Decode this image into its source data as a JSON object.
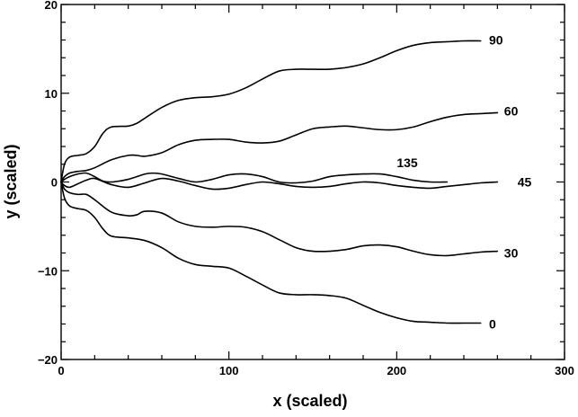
{
  "chart_data": {
    "type": "line",
    "xlabel": "x (scaled)",
    "ylabel": "y (scaled)",
    "xlim": [
      0,
      300
    ],
    "ylim": [
      -20,
      20
    ],
    "xticks": [
      0,
      100,
      200,
      300
    ],
    "yticks": [
      -20,
      -10,
      0,
      10,
      20
    ],
    "xtick_labels": [
      "0",
      "100",
      "200",
      "300"
    ],
    "ytick_labels": [
      "−20",
      "−10",
      "0",
      "10",
      "20"
    ],
    "grid": false,
    "series": [
      {
        "name": "90",
        "x": [
          0,
          2,
          5,
          10,
          15,
          20,
          25,
          30,
          40,
          45,
          50,
          60,
          70,
          80,
          90,
          100,
          110,
          120,
          130,
          140,
          150,
          160,
          170,
          180,
          190,
          200,
          210,
          220,
          230,
          240,
          250
        ],
        "y": [
          0,
          2,
          2.8,
          3,
          3.2,
          4,
          5.5,
          6.2,
          6.3,
          6.6,
          7.2,
          8.4,
          9.2,
          9.5,
          9.6,
          9.9,
          10.6,
          11.6,
          12.5,
          12.7,
          12.7,
          12.7,
          12.9,
          13.3,
          14.0,
          14.8,
          15.4,
          15.7,
          15.8,
          15.9,
          15.9
        ]
      },
      {
        "name": "60",
        "x": [
          0,
          2,
          5,
          10,
          15,
          20,
          30,
          40,
          45,
          50,
          60,
          70,
          80,
          90,
          100,
          110,
          120,
          130,
          140,
          150,
          160,
          170,
          180,
          190,
          200,
          210,
          220,
          230,
          240,
          250,
          260
        ],
        "y": [
          0,
          0.6,
          1.0,
          1.2,
          1.3,
          1.6,
          2.5,
          3.0,
          3.0,
          2.9,
          3.3,
          4.2,
          4.7,
          4.8,
          4.8,
          4.5,
          4.4,
          4.6,
          5.3,
          6.0,
          6.2,
          6.3,
          6.1,
          5.9,
          5.9,
          6.2,
          6.8,
          7.3,
          7.6,
          7.7,
          7.8
        ]
      },
      {
        "name": "135",
        "x": [
          0,
          2,
          5,
          10,
          15,
          20,
          25,
          30,
          40,
          50,
          55,
          60,
          70,
          80,
          90,
          100,
          110,
          120,
          130,
          140,
          150,
          160,
          170,
          180,
          190,
          200,
          210,
          220,
          230
        ],
        "y": [
          0,
          0.3,
          0.6,
          0.9,
          1.0,
          0.6,
          0.1,
          0,
          0.3,
          0.9,
          1.0,
          0.9,
          0.4,
          0.0,
          0.3,
          0.8,
          0.9,
          0.6,
          0.0,
          -0.1,
          0.1,
          0.6,
          0.8,
          0.9,
          0.9,
          0.6,
          0.2,
          0.0,
          0.0
        ]
      },
      {
        "name": "45",
        "x": [
          0,
          2,
          5,
          10,
          15,
          20,
          30,
          40,
          50,
          60,
          70,
          80,
          90,
          100,
          110,
          120,
          130,
          140,
          150,
          160,
          170,
          180,
          190,
          200,
          210,
          220,
          230,
          240,
          250,
          260
        ],
        "y": [
          0,
          -0.4,
          -0.6,
          -0.2,
          0.2,
          0.4,
          -0.3,
          -0.6,
          -0.1,
          0.4,
          0.1,
          -0.4,
          -0.8,
          -0.7,
          -0.3,
          0.0,
          -0.2,
          -0.5,
          -0.6,
          -0.5,
          -0.2,
          0.0,
          -0.1,
          -0.4,
          -0.6,
          -0.7,
          -0.5,
          -0.3,
          -0.1,
          0.0
        ]
      },
      {
        "name": "30",
        "x": [
          0,
          2,
          5,
          10,
          15,
          20,
          30,
          40,
          45,
          50,
          60,
          70,
          80,
          90,
          100,
          110,
          120,
          130,
          140,
          150,
          160,
          170,
          180,
          190,
          200,
          210,
          220,
          230,
          240,
          250,
          260
        ],
        "y": [
          0,
          -0.8,
          -1.2,
          -1.4,
          -1.4,
          -2.0,
          -3.4,
          -3.8,
          -3.7,
          -3.3,
          -3.5,
          -4.5,
          -5.0,
          -5.1,
          -5.0,
          -5.1,
          -5.6,
          -6.5,
          -7.4,
          -7.8,
          -7.8,
          -7.6,
          -7.2,
          -7.1,
          -7.3,
          -7.8,
          -8.2,
          -8.3,
          -8.1,
          -7.9,
          -7.8
        ]
      },
      {
        "name": "0",
        "x": [
          0,
          2,
          5,
          10,
          15,
          20,
          25,
          30,
          40,
          50,
          60,
          70,
          80,
          90,
          100,
          110,
          120,
          130,
          140,
          150,
          160,
          170,
          180,
          190,
          200,
          210,
          220,
          230,
          240,
          250
        ],
        "y": [
          0,
          -1.8,
          -2.7,
          -3.0,
          -3.2,
          -4.0,
          -5.3,
          -6.1,
          -6.3,
          -6.6,
          -7.4,
          -8.6,
          -9.3,
          -9.5,
          -9.7,
          -10.6,
          -11.6,
          -12.5,
          -12.7,
          -12.7,
          -12.8,
          -13.1,
          -13.9,
          -14.7,
          -15.3,
          -15.7,
          -15.8,
          -15.9,
          -15.9,
          -15.9
        ]
      }
    ],
    "annotations": [
      {
        "text": "90",
        "x": 255,
        "y": 16
      },
      {
        "text": "60",
        "x": 264,
        "y": 8
      },
      {
        "text": "135",
        "x": 200,
        "y": 2.2
      },
      {
        "text": "45",
        "x": 272,
        "y": 0
      },
      {
        "text": "30",
        "x": 264,
        "y": -8
      },
      {
        "text": "0",
        "x": 255,
        "y": -16
      }
    ]
  }
}
